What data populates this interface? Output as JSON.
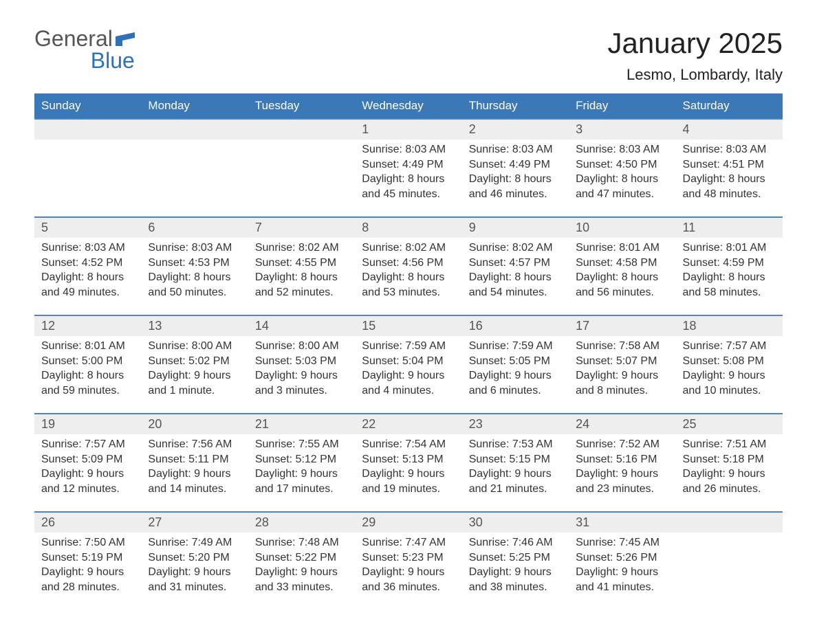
{
  "logo": {
    "part1": "General",
    "part2": "Blue"
  },
  "colors": {
    "header_bg": "#3b78b8",
    "header_text": "#ffffff",
    "daynum_bg": "#eeeeee",
    "week_border": "#4a86c5",
    "accent": "#2e71b8",
    "body_text": "#333333"
  },
  "title": "January 2025",
  "location": "Lesmo, Lombardy, Italy",
  "days_of_week": [
    "Sunday",
    "Monday",
    "Tuesday",
    "Wednesday",
    "Thursday",
    "Friday",
    "Saturday"
  ],
  "weeks": [
    [
      {
        "num": "",
        "sunrise": "",
        "sunset": "",
        "daylight1": "",
        "daylight2": ""
      },
      {
        "num": "",
        "sunrise": "",
        "sunset": "",
        "daylight1": "",
        "daylight2": ""
      },
      {
        "num": "",
        "sunrise": "",
        "sunset": "",
        "daylight1": "",
        "daylight2": ""
      },
      {
        "num": "1",
        "sunrise": "Sunrise: 8:03 AM",
        "sunset": "Sunset: 4:49 PM",
        "daylight1": "Daylight: 8 hours",
        "daylight2": "and 45 minutes."
      },
      {
        "num": "2",
        "sunrise": "Sunrise: 8:03 AM",
        "sunset": "Sunset: 4:49 PM",
        "daylight1": "Daylight: 8 hours",
        "daylight2": "and 46 minutes."
      },
      {
        "num": "3",
        "sunrise": "Sunrise: 8:03 AM",
        "sunset": "Sunset: 4:50 PM",
        "daylight1": "Daylight: 8 hours",
        "daylight2": "and 47 minutes."
      },
      {
        "num": "4",
        "sunrise": "Sunrise: 8:03 AM",
        "sunset": "Sunset: 4:51 PM",
        "daylight1": "Daylight: 8 hours",
        "daylight2": "and 48 minutes."
      }
    ],
    [
      {
        "num": "5",
        "sunrise": "Sunrise: 8:03 AM",
        "sunset": "Sunset: 4:52 PM",
        "daylight1": "Daylight: 8 hours",
        "daylight2": "and 49 minutes."
      },
      {
        "num": "6",
        "sunrise": "Sunrise: 8:03 AM",
        "sunset": "Sunset: 4:53 PM",
        "daylight1": "Daylight: 8 hours",
        "daylight2": "and 50 minutes."
      },
      {
        "num": "7",
        "sunrise": "Sunrise: 8:02 AM",
        "sunset": "Sunset: 4:55 PM",
        "daylight1": "Daylight: 8 hours",
        "daylight2": "and 52 minutes."
      },
      {
        "num": "8",
        "sunrise": "Sunrise: 8:02 AM",
        "sunset": "Sunset: 4:56 PM",
        "daylight1": "Daylight: 8 hours",
        "daylight2": "and 53 minutes."
      },
      {
        "num": "9",
        "sunrise": "Sunrise: 8:02 AM",
        "sunset": "Sunset: 4:57 PM",
        "daylight1": "Daylight: 8 hours",
        "daylight2": "and 54 minutes."
      },
      {
        "num": "10",
        "sunrise": "Sunrise: 8:01 AM",
        "sunset": "Sunset: 4:58 PM",
        "daylight1": "Daylight: 8 hours",
        "daylight2": "and 56 minutes."
      },
      {
        "num": "11",
        "sunrise": "Sunrise: 8:01 AM",
        "sunset": "Sunset: 4:59 PM",
        "daylight1": "Daylight: 8 hours",
        "daylight2": "and 58 minutes."
      }
    ],
    [
      {
        "num": "12",
        "sunrise": "Sunrise: 8:01 AM",
        "sunset": "Sunset: 5:00 PM",
        "daylight1": "Daylight: 8 hours",
        "daylight2": "and 59 minutes."
      },
      {
        "num": "13",
        "sunrise": "Sunrise: 8:00 AM",
        "sunset": "Sunset: 5:02 PM",
        "daylight1": "Daylight: 9 hours",
        "daylight2": "and 1 minute."
      },
      {
        "num": "14",
        "sunrise": "Sunrise: 8:00 AM",
        "sunset": "Sunset: 5:03 PM",
        "daylight1": "Daylight: 9 hours",
        "daylight2": "and 3 minutes."
      },
      {
        "num": "15",
        "sunrise": "Sunrise: 7:59 AM",
        "sunset": "Sunset: 5:04 PM",
        "daylight1": "Daylight: 9 hours",
        "daylight2": "and 4 minutes."
      },
      {
        "num": "16",
        "sunrise": "Sunrise: 7:59 AM",
        "sunset": "Sunset: 5:05 PM",
        "daylight1": "Daylight: 9 hours",
        "daylight2": "and 6 minutes."
      },
      {
        "num": "17",
        "sunrise": "Sunrise: 7:58 AM",
        "sunset": "Sunset: 5:07 PM",
        "daylight1": "Daylight: 9 hours",
        "daylight2": "and 8 minutes."
      },
      {
        "num": "18",
        "sunrise": "Sunrise: 7:57 AM",
        "sunset": "Sunset: 5:08 PM",
        "daylight1": "Daylight: 9 hours",
        "daylight2": "and 10 minutes."
      }
    ],
    [
      {
        "num": "19",
        "sunrise": "Sunrise: 7:57 AM",
        "sunset": "Sunset: 5:09 PM",
        "daylight1": "Daylight: 9 hours",
        "daylight2": "and 12 minutes."
      },
      {
        "num": "20",
        "sunrise": "Sunrise: 7:56 AM",
        "sunset": "Sunset: 5:11 PM",
        "daylight1": "Daylight: 9 hours",
        "daylight2": "and 14 minutes."
      },
      {
        "num": "21",
        "sunrise": "Sunrise: 7:55 AM",
        "sunset": "Sunset: 5:12 PM",
        "daylight1": "Daylight: 9 hours",
        "daylight2": "and 17 minutes."
      },
      {
        "num": "22",
        "sunrise": "Sunrise: 7:54 AM",
        "sunset": "Sunset: 5:13 PM",
        "daylight1": "Daylight: 9 hours",
        "daylight2": "and 19 minutes."
      },
      {
        "num": "23",
        "sunrise": "Sunrise: 7:53 AM",
        "sunset": "Sunset: 5:15 PM",
        "daylight1": "Daylight: 9 hours",
        "daylight2": "and 21 minutes."
      },
      {
        "num": "24",
        "sunrise": "Sunrise: 7:52 AM",
        "sunset": "Sunset: 5:16 PM",
        "daylight1": "Daylight: 9 hours",
        "daylight2": "and 23 minutes."
      },
      {
        "num": "25",
        "sunrise": "Sunrise: 7:51 AM",
        "sunset": "Sunset: 5:18 PM",
        "daylight1": "Daylight: 9 hours",
        "daylight2": "and 26 minutes."
      }
    ],
    [
      {
        "num": "26",
        "sunrise": "Sunrise: 7:50 AM",
        "sunset": "Sunset: 5:19 PM",
        "daylight1": "Daylight: 9 hours",
        "daylight2": "and 28 minutes."
      },
      {
        "num": "27",
        "sunrise": "Sunrise: 7:49 AM",
        "sunset": "Sunset: 5:20 PM",
        "daylight1": "Daylight: 9 hours",
        "daylight2": "and 31 minutes."
      },
      {
        "num": "28",
        "sunrise": "Sunrise: 7:48 AM",
        "sunset": "Sunset: 5:22 PM",
        "daylight1": "Daylight: 9 hours",
        "daylight2": "and 33 minutes."
      },
      {
        "num": "29",
        "sunrise": "Sunrise: 7:47 AM",
        "sunset": "Sunset: 5:23 PM",
        "daylight1": "Daylight: 9 hours",
        "daylight2": "and 36 minutes."
      },
      {
        "num": "30",
        "sunrise": "Sunrise: 7:46 AM",
        "sunset": "Sunset: 5:25 PM",
        "daylight1": "Daylight: 9 hours",
        "daylight2": "and 38 minutes."
      },
      {
        "num": "31",
        "sunrise": "Sunrise: 7:45 AM",
        "sunset": "Sunset: 5:26 PM",
        "daylight1": "Daylight: 9 hours",
        "daylight2": "and 41 minutes."
      },
      {
        "num": "",
        "sunrise": "",
        "sunset": "",
        "daylight1": "",
        "daylight2": ""
      }
    ]
  ]
}
